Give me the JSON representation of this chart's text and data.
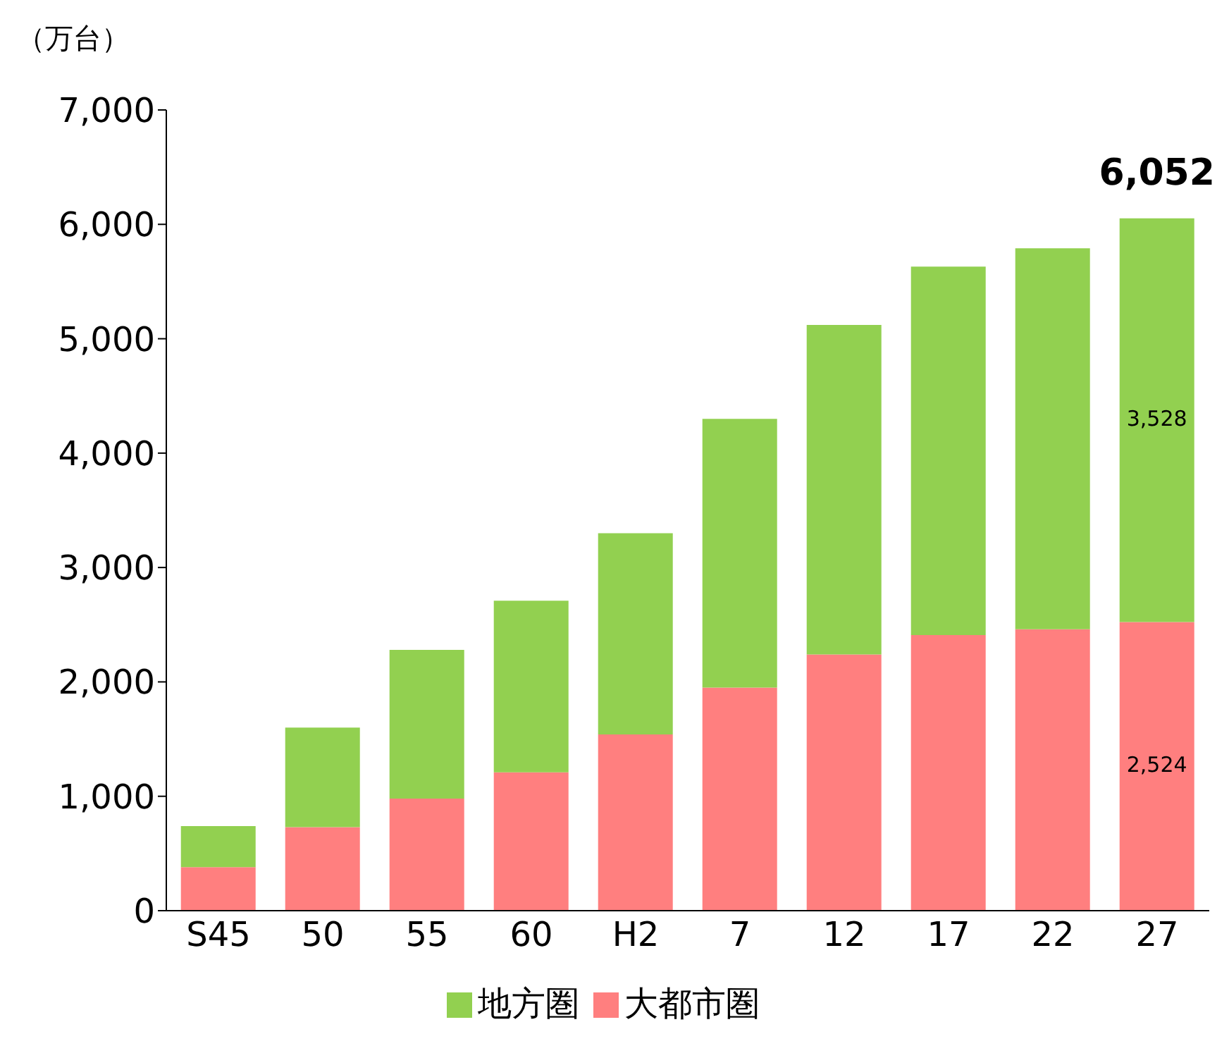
{
  "chart_data": {
    "type": "bar",
    "stacked": true,
    "ylabel": "（万台）",
    "categories": [
      "S45",
      "50",
      "55",
      "60",
      "H2",
      "7",
      "12",
      "17",
      "22",
      "27"
    ],
    "series": [
      {
        "name": "大都市圏",
        "color": "#ff7f7f",
        "values": [
          380,
          730,
          980,
          1210,
          1540,
          1950,
          2240,
          2410,
          2460,
          2524
        ],
        "value_labels": [
          null,
          null,
          null,
          null,
          null,
          null,
          null,
          null,
          null,
          "2,524"
        ]
      },
      {
        "name": "地方圏",
        "color": "#92d050",
        "values": [
          360,
          870,
          1300,
          1500,
          1760,
          2350,
          2880,
          3220,
          3330,
          3528
        ],
        "value_labels": [
          null,
          null,
          null,
          null,
          null,
          null,
          null,
          null,
          null,
          "3,528"
        ]
      }
    ],
    "totals": [
      null,
      null,
      null,
      null,
      null,
      null,
      null,
      null,
      null,
      "6,052"
    ],
    "ylim": [
      0,
      7000
    ],
    "yticks": [
      {
        "value": 0,
        "label": "0"
      },
      {
        "value": 1000,
        "label": "1,000"
      },
      {
        "value": 2000,
        "label": "2,000"
      },
      {
        "value": 3000,
        "label": "3,000"
      },
      {
        "value": 4000,
        "label": "4,000"
      },
      {
        "value": 5000,
        "label": "5,000"
      },
      {
        "value": 6000,
        "label": "6,000"
      },
      {
        "value": 7000,
        "label": "7,000"
      }
    ],
    "grid": false,
    "legend": "bottom"
  }
}
